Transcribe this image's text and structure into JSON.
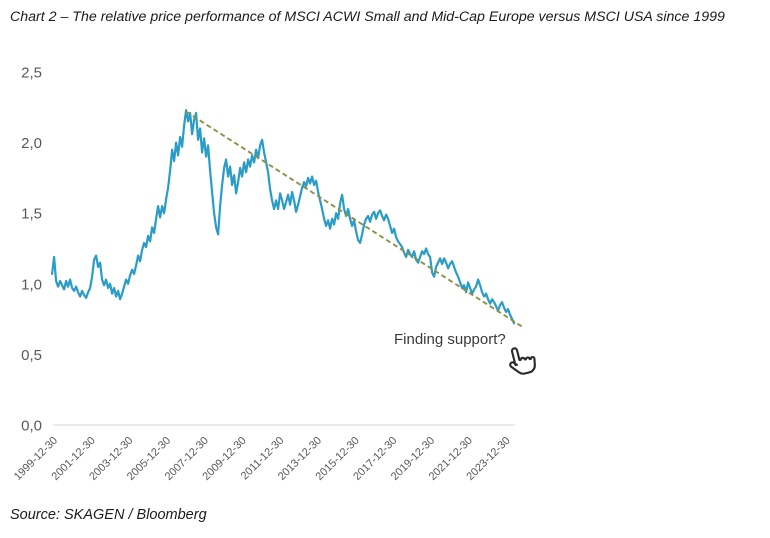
{
  "title": "Chart 2 – The relative price performance of MSCI ACWI Small and Mid-Cap Europe versus MSCI USA since 1999",
  "source": "Source: SKAGEN / Bloomberg",
  "chart_data": {
    "type": "line",
    "title": "The relative price performance of MSCI ACWI Small and Mid-Cap Europe versus MSCI USA since 1999",
    "annotation": "Finding support?",
    "grid": "off",
    "legend": "none",
    "axis_color": "#d9d9d9",
    "axis_label_color": "#595959",
    "x_axis": {
      "tick_labels": [
        "1999-12-30",
        "2001-12-30",
        "2003-12-30",
        "2005-12-30",
        "2007-12-30",
        "2009-12-30",
        "2011-12-30",
        "2013-12-30",
        "2015-12-30",
        "2017-12-30",
        "2019-12-30",
        "2021-12-30",
        "2023-12-30"
      ],
      "tick_years": [
        2000,
        2002,
        2004,
        2006,
        2008,
        2010,
        2012,
        2014,
        2016,
        2018,
        2020,
        2022,
        2024
      ],
      "min_year": 2000.0,
      "max_year": 2024.5
    },
    "y_axis": {
      "tick_labels": [
        "0,0",
        "0,5",
        "1,0",
        "1,5",
        "2,0",
        "2,5"
      ],
      "tick_values": [
        0,
        0.5,
        1.0,
        1.5,
        2.0,
        2.5
      ],
      "min": 0.0,
      "max": 2.5
    },
    "series": {
      "name": "MSCI ACWI Small and Mid-Cap Europe relative to MSCI USA",
      "color": "#2a9cc8",
      "start_year": 1999.95,
      "step_years": 0.10606,
      "values": [
        1.07,
        1.19,
        1.02,
        0.98,
        1.02,
        0.99,
        0.96,
        1.02,
        0.98,
        1.03,
        0.97,
        0.95,
        0.98,
        0.94,
        0.91,
        0.95,
        0.92,
        0.9,
        0.94,
        0.97,
        1.05,
        1.17,
        1.2,
        1.12,
        1.15,
        1.03,
        0.99,
        1.03,
        0.97,
        1.0,
        0.93,
        0.97,
        0.91,
        0.95,
        0.89,
        0.93,
        0.98,
        1.03,
        1.0,
        1.06,
        1.1,
        1.07,
        1.13,
        1.2,
        1.16,
        1.24,
        1.29,
        1.26,
        1.34,
        1.3,
        1.4,
        1.36,
        1.46,
        1.55,
        1.47,
        1.55,
        1.5,
        1.6,
        1.68,
        1.8,
        1.95,
        1.87,
        2.0,
        1.91,
        2.04,
        1.97,
        2.12,
        2.23,
        2.15,
        2.21,
        2.06,
        2.16,
        2.21,
        2.02,
        2.1,
        1.93,
        2.03,
        1.9,
        1.98,
        1.8,
        1.65,
        1.5,
        1.4,
        1.35,
        1.55,
        1.7,
        1.82,
        1.88,
        1.76,
        1.83,
        1.7,
        1.77,
        1.64,
        1.72,
        1.82,
        1.76,
        1.86,
        1.79,
        1.88,
        1.83,
        1.91,
        1.86,
        1.95,
        1.89,
        1.98,
        2.02,
        1.93,
        1.86,
        1.79,
        1.67,
        1.59,
        1.53,
        1.59,
        1.53,
        1.64,
        1.59,
        1.53,
        1.58,
        1.63,
        1.56,
        1.65,
        1.59,
        1.51,
        1.56,
        1.62,
        1.68,
        1.72,
        1.69,
        1.75,
        1.71,
        1.76,
        1.7,
        1.73,
        1.65,
        1.59,
        1.53,
        1.46,
        1.41,
        1.45,
        1.39,
        1.46,
        1.42,
        1.5,
        1.46,
        1.57,
        1.63,
        1.53,
        1.48,
        1.53,
        1.46,
        1.41,
        1.45,
        1.37,
        1.31,
        1.29,
        1.35,
        1.42,
        1.46,
        1.48,
        1.44,
        1.49,
        1.51,
        1.46,
        1.5,
        1.52,
        1.48,
        1.45,
        1.49,
        1.46,
        1.41,
        1.36,
        1.39,
        1.33,
        1.3,
        1.28,
        1.26,
        1.22,
        1.19,
        1.24,
        1.21,
        1.19,
        1.23,
        1.17,
        1.15,
        1.19,
        1.23,
        1.21,
        1.25,
        1.21,
        1.19,
        1.08,
        1.05,
        1.12,
        1.15,
        1.18,
        1.14,
        1.18,
        1.15,
        1.11,
        1.14,
        1.16,
        1.12,
        1.08,
        1.05,
        1.01,
        0.97,
        0.99,
        0.94,
        1.01,
        0.97,
        0.93,
        0.96,
        0.98,
        1.03,
        0.99,
        0.94,
        0.91,
        0.93,
        0.89,
        0.86,
        0.89,
        0.87,
        0.84,
        0.81,
        0.85,
        0.87,
        0.83,
        0.8,
        0.82,
        0.78,
        0.75,
        0.72
      ]
    },
    "trendline": {
      "color": "#8d9144",
      "style": "dashed",
      "x1": 2007.05,
      "y1": 2.22,
      "x2": 2024.9,
      "y2": 0.695
    }
  }
}
